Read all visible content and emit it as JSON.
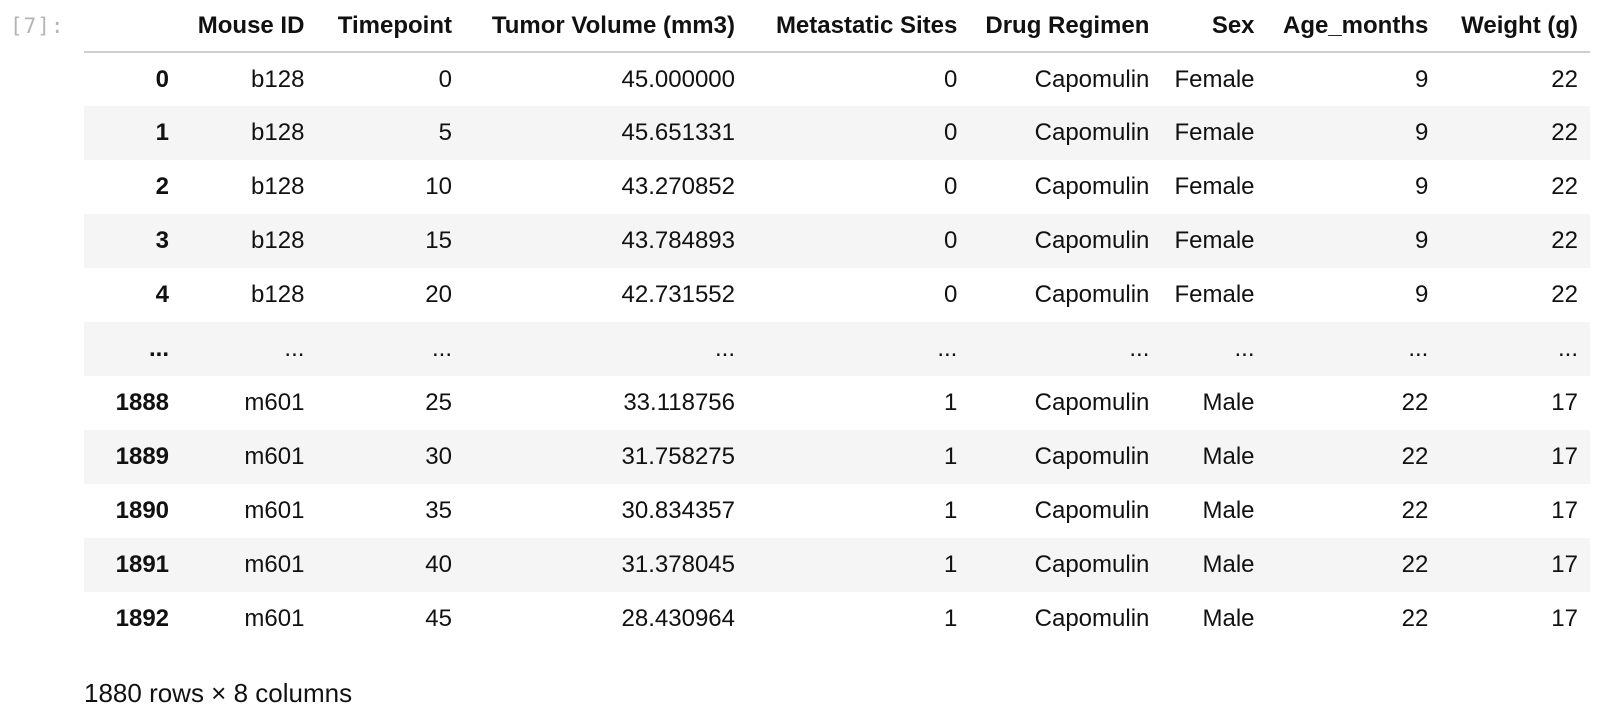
{
  "cell": {
    "prompt": "[7]:"
  },
  "table": {
    "columns": [
      "",
      "Mouse ID",
      "Timepoint",
      "Tumor Volume (mm3)",
      "Metastatic Sites",
      "Drug Regimen",
      "Sex",
      "Age_months",
      "Weight (g)"
    ],
    "rows": [
      {
        "index": "0",
        "cells": [
          "b128",
          "0",
          "45.000000",
          "0",
          "Capomulin",
          "Female",
          "9",
          "22"
        ]
      },
      {
        "index": "1",
        "cells": [
          "b128",
          "5",
          "45.651331",
          "0",
          "Capomulin",
          "Female",
          "9",
          "22"
        ]
      },
      {
        "index": "2",
        "cells": [
          "b128",
          "10",
          "43.270852",
          "0",
          "Capomulin",
          "Female",
          "9",
          "22"
        ]
      },
      {
        "index": "3",
        "cells": [
          "b128",
          "15",
          "43.784893",
          "0",
          "Capomulin",
          "Female",
          "9",
          "22"
        ]
      },
      {
        "index": "4",
        "cells": [
          "b128",
          "20",
          "42.731552",
          "0",
          "Capomulin",
          "Female",
          "9",
          "22"
        ]
      },
      {
        "index": "...",
        "cells": [
          "...",
          "...",
          "...",
          "...",
          "...",
          "...",
          "...",
          "..."
        ]
      },
      {
        "index": "1888",
        "cells": [
          "m601",
          "25",
          "33.118756",
          "1",
          "Capomulin",
          "Male",
          "22",
          "17"
        ]
      },
      {
        "index": "1889",
        "cells": [
          "m601",
          "30",
          "31.758275",
          "1",
          "Capomulin",
          "Male",
          "22",
          "17"
        ]
      },
      {
        "index": "1890",
        "cells": [
          "m601",
          "35",
          "30.834357",
          "1",
          "Capomulin",
          "Male",
          "22",
          "17"
        ]
      },
      {
        "index": "1891",
        "cells": [
          "m601",
          "40",
          "31.378045",
          "1",
          "Capomulin",
          "Male",
          "22",
          "17"
        ]
      },
      {
        "index": "1892",
        "cells": [
          "m601",
          "45",
          "28.430964",
          "1",
          "Capomulin",
          "Male",
          "22",
          "17"
        ]
      }
    ]
  },
  "summary": "1880 rows × 8 columns",
  "colors": {
    "stripe": "#f5f5f5",
    "prompt": "#b5b5b5",
    "header_rule": "#cfcfcf"
  }
}
